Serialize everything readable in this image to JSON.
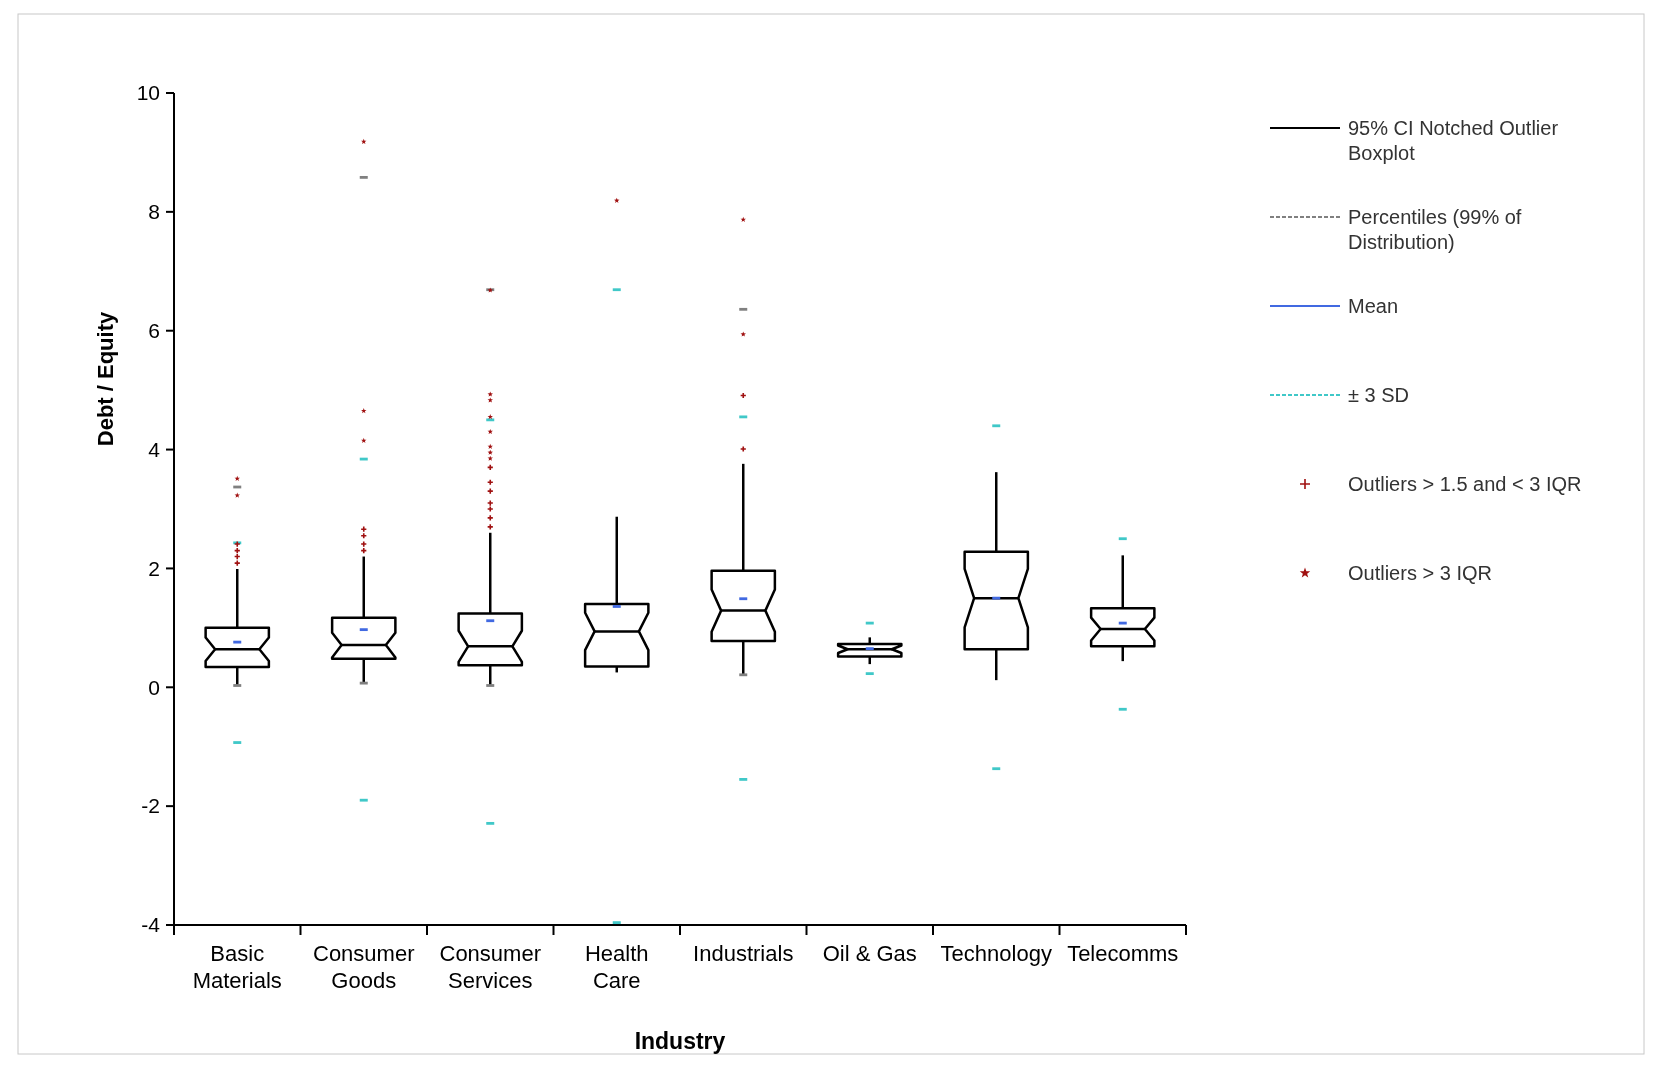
{
  "chart_data": {
    "type": "box",
    "xlabel": "Industry",
    "ylabel": "Debt / Equity",
    "categories": [
      "Basic Materials",
      "Consumer Goods",
      "Consumer Services",
      "Health Care",
      "Industrials",
      "Oil & Gas",
      "Technology",
      "Telecomms"
    ],
    "ylim": [
      -4,
      10
    ],
    "yticks": [
      -4,
      -2,
      0,
      2,
      4,
      6,
      8,
      10
    ],
    "legend": "right",
    "grid": false,
    "series": [
      {
        "name": "95% CI Notched Outlier Boxplot",
        "color": "#000000",
        "boxes": [
          {
            "low": 0.04,
            "q1": 0.34,
            "median": 0.64,
            "q3": 1.0,
            "high": 1.99
          },
          {
            "low": 0.07,
            "q1": 0.48,
            "median": 0.71,
            "q3": 1.17,
            "high": 2.2
          },
          {
            "low": 0.03,
            "q1": 0.37,
            "median": 0.69,
            "q3": 1.24,
            "high": 2.6
          },
          {
            "low": 0.25,
            "q1": 0.35,
            "median": 0.94,
            "q3": 1.4,
            "high": 2.87
          },
          {
            "low": 0.21,
            "q1": 0.78,
            "median": 1.29,
            "q3": 1.96,
            "high": 3.76
          },
          {
            "low": 0.39,
            "q1": 0.52,
            "median": 0.64,
            "q3": 0.73,
            "high": 0.84
          },
          {
            "low": 0.12,
            "q1": 0.64,
            "median": 1.5,
            "q3": 2.28,
            "high": 3.62
          },
          {
            "low": 0.44,
            "q1": 0.69,
            "median": 0.98,
            "q3": 1.33,
            "high": 2.22
          }
        ]
      },
      {
        "name": "Percentiles (99% of Distribution)",
        "type": "scatter",
        "color": "#808080",
        "line_style": "dashed",
        "x": [
          "Basic Materials",
          "Basic Materials",
          "Consumer Goods",
          "Consumer Goods",
          "Consumer Services",
          "Consumer Services",
          "Industrials",
          "Industrials"
        ],
        "values": [
          0.03,
          3.37,
          0.07,
          8.58,
          0.03,
          6.69,
          0.21,
          6.36
        ]
      },
      {
        "name": "Mean",
        "type": "scatter",
        "color": "#4169e1",
        "line_style": "solid",
        "x": [
          "Basic Materials",
          "Consumer Goods",
          "Consumer Services",
          "Health Care",
          "Industrials",
          "Oil & Gas",
          "Technology",
          "Telecomms"
        ],
        "values": [
          0.76,
          0.97,
          1.12,
          1.36,
          1.49,
          0.65,
          1.5,
          1.08
        ]
      },
      {
        "name": "± 3 SD",
        "type": "scatter",
        "color": "#40c8c8",
        "line_style": "dashed",
        "x": [
          "Basic Materials",
          "Basic Materials",
          "Consumer Goods",
          "Consumer Goods",
          "Consumer Services",
          "Consumer Services",
          "Health Care",
          "Health Care",
          "Industrials",
          "Industrials",
          "Oil & Gas",
          "Oil & Gas",
          "Technology",
          "Technology",
          "Telecomms",
          "Telecomms"
        ],
        "values": [
          2.43,
          -0.93,
          3.84,
          -1.9,
          4.5,
          -2.29,
          6.69,
          -3.96,
          4.55,
          -1.55,
          1.08,
          0.23,
          4.4,
          -1.37,
          2.5,
          -0.37
        ]
      },
      {
        "name": "Outliers > 1.5 and < 3 IQR",
        "type": "scatter",
        "color": "#a01010",
        "marker": "cross",
        "x": [
          "Basic Materials",
          "Basic Materials",
          "Basic Materials",
          "Basic Materials",
          "Consumer Goods",
          "Consumer Goods",
          "Consumer Goods",
          "Consumer Goods",
          "Consumer Services",
          "Consumer Services",
          "Consumer Services",
          "Consumer Services",
          "Consumer Services",
          "Consumer Services",
          "Consumer Services",
          "Industrials",
          "Industrials"
        ],
        "values": [
          2.09,
          2.2,
          2.3,
          2.41,
          2.3,
          2.41,
          2.55,
          2.66,
          2.7,
          2.85,
          3.0,
          3.1,
          3.3,
          3.45,
          3.7,
          4.01,
          4.91
        ]
      },
      {
        "name": "Outliers > 3 IQR",
        "type": "scatter",
        "color": "#a01010",
        "marker": "star",
        "x": [
          "Basic Materials",
          "Basic Materials",
          "Consumer Goods",
          "Consumer Goods",
          "Consumer Goods",
          "Consumer Services",
          "Consumer Services",
          "Consumer Services",
          "Consumer Services",
          "Consumer Services",
          "Consumer Services",
          "Consumer Services",
          "Consumer Services",
          "Health Care",
          "Industrials",
          "Industrials"
        ],
        "values": [
          3.23,
          3.51,
          4.15,
          4.65,
          9.18,
          3.85,
          3.95,
          4.05,
          4.3,
          4.55,
          4.83,
          4.93,
          6.68,
          8.19,
          5.94,
          7.87
        ]
      }
    ]
  }
}
